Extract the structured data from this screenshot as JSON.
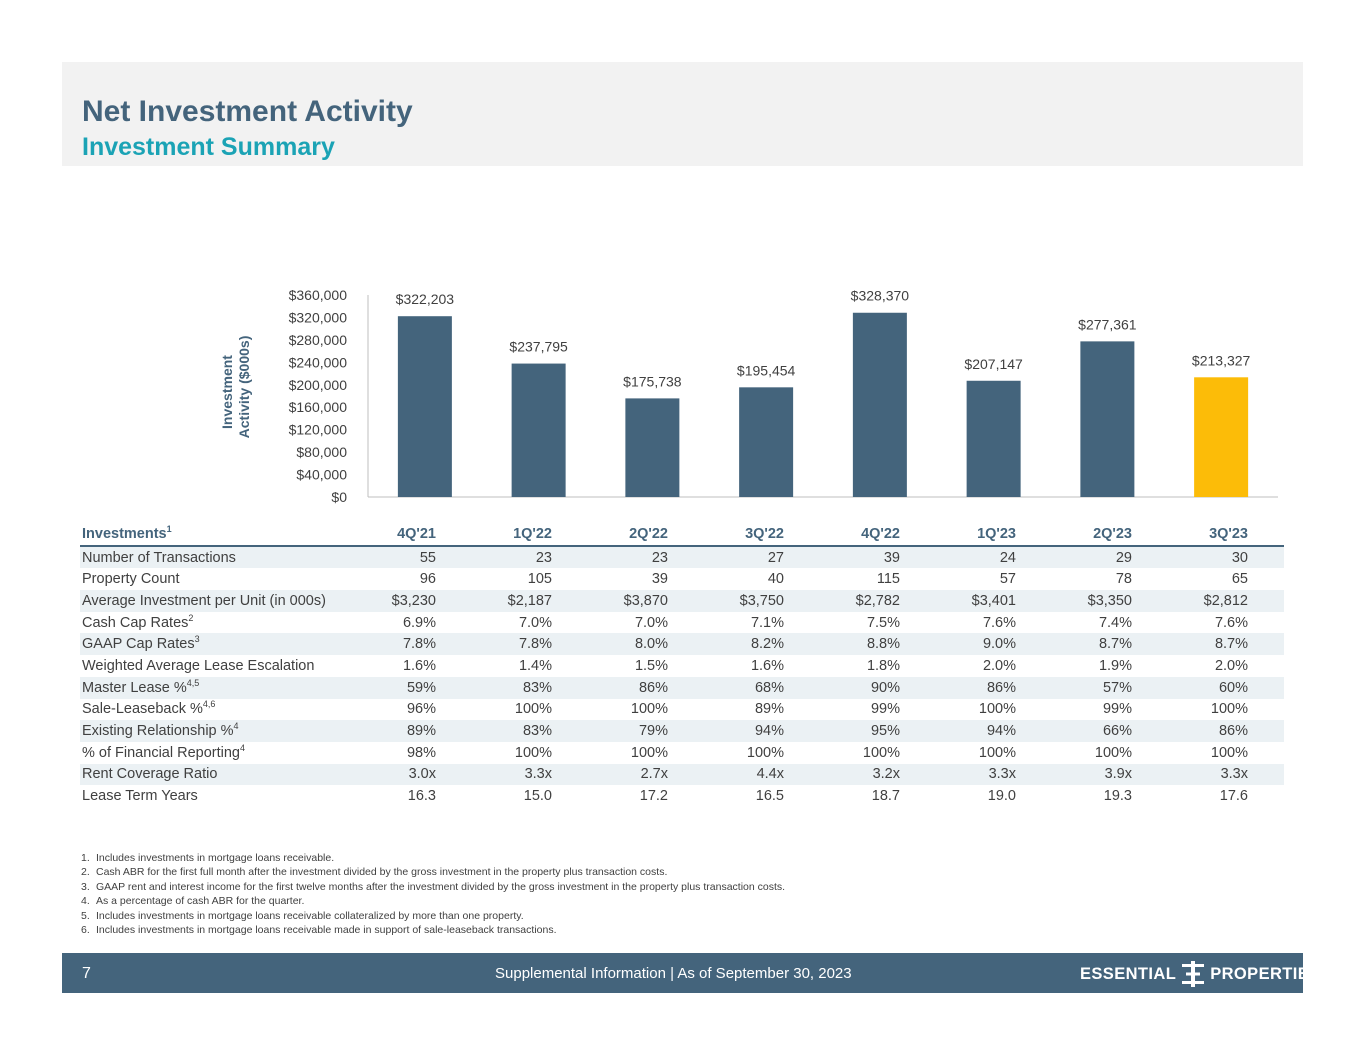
{
  "header": {
    "title": "Net Investment Activity",
    "subtitle": "Investment Summary"
  },
  "chart_data": {
    "type": "bar",
    "title": "",
    "ylabel_line1": "Investment",
    "ylabel_line2": "Activity ($000s)",
    "xlabel": "",
    "ylim": [
      0,
      360000
    ],
    "yticks": [
      0,
      40000,
      80000,
      120000,
      160000,
      200000,
      240000,
      280000,
      320000,
      360000
    ],
    "ytick_labels": [
      "$0",
      "$40,000",
      "$80,000",
      "$120,000",
      "$160,000",
      "$200,000",
      "$240,000",
      "$280,000",
      "$320,000",
      "$360,000"
    ],
    "categories": [
      "4Q'21",
      "1Q'22",
      "2Q'22",
      "3Q'22",
      "4Q'22",
      "1Q'23",
      "2Q'23",
      "3Q'23"
    ],
    "values": [
      322203,
      237795,
      175738,
      195454,
      328370,
      207147,
      277361,
      213327
    ],
    "data_labels": [
      "$322,203",
      "$237,795",
      "$175,738",
      "$195,454",
      "$328,370",
      "$207,147",
      "$277,361",
      "$213,327"
    ],
    "colors": [
      "#44647c",
      "#44647c",
      "#44647c",
      "#44647c",
      "#44647c",
      "#44647c",
      "#44647c",
      "#fcbc08"
    ]
  },
  "table": {
    "header_label": "Investments",
    "header_sup": "1",
    "columns": [
      "4Q'21",
      "1Q'22",
      "2Q'22",
      "3Q'22",
      "4Q'22",
      "1Q'23",
      "2Q'23",
      "3Q'23"
    ],
    "rows": [
      {
        "label": "Number of Transactions",
        "sup": "",
        "values": [
          "55",
          "23",
          "23",
          "27",
          "39",
          "24",
          "29",
          "30"
        ]
      },
      {
        "label": "Property Count",
        "sup": "",
        "values": [
          "96",
          "105",
          "39",
          "40",
          "115",
          "57",
          "78",
          "65"
        ]
      },
      {
        "label": "Average Investment per Unit (in 000s)",
        "sup": "",
        "values": [
          "$3,230",
          "$2,187",
          "$3,870",
          "$3,750",
          "$2,782",
          "$3,401",
          "$3,350",
          "$2,812"
        ]
      },
      {
        "label": "Cash Cap Rates",
        "sup": "2",
        "values": [
          "6.9%",
          "7.0%",
          "7.0%",
          "7.1%",
          "7.5%",
          "7.6%",
          "7.4%",
          "7.6%"
        ]
      },
      {
        "label": "GAAP Cap Rates",
        "sup": "3",
        "values": [
          "7.8%",
          "7.8%",
          "8.0%",
          "8.2%",
          "8.8%",
          "9.0%",
          "8.7%",
          "8.7%"
        ]
      },
      {
        "label": "Weighted Average Lease Escalation",
        "sup": "",
        "values": [
          "1.6%",
          "1.4%",
          "1.5%",
          "1.6%",
          "1.8%",
          "2.0%",
          "1.9%",
          "2.0%"
        ]
      },
      {
        "label": "Master Lease %",
        "sup": "4,5",
        "values": [
          "59%",
          "83%",
          "86%",
          "68%",
          "90%",
          "86%",
          "57%",
          "60%"
        ]
      },
      {
        "label": "Sale-Leaseback %",
        "sup": "4,6",
        "values": [
          "96%",
          "100%",
          "100%",
          "89%",
          "99%",
          "100%",
          "99%",
          "100%"
        ]
      },
      {
        "label": "Existing Relationship %",
        "sup": "4",
        "values": [
          "89%",
          "83%",
          "79%",
          "94%",
          "95%",
          "94%",
          "66%",
          "86%"
        ]
      },
      {
        "label": "% of Financial Reporting",
        "sup": "4",
        "values": [
          "98%",
          "100%",
          "100%",
          "100%",
          "100%",
          "100%",
          "100%",
          "100%"
        ]
      },
      {
        "label": "Rent Coverage Ratio",
        "sup": "",
        "values": [
          "3.0x",
          "3.3x",
          "2.7x",
          "4.4x",
          "3.2x",
          "3.3x",
          "3.9x",
          "3.3x"
        ]
      },
      {
        "label": "Lease Term Years",
        "sup": "",
        "values": [
          "16.3",
          "15.0",
          "17.2",
          "16.5",
          "18.7",
          "19.0",
          "19.3",
          "17.6"
        ]
      }
    ]
  },
  "footnotes": [
    {
      "num": "1.",
      "text": "Includes investments in mortgage loans receivable."
    },
    {
      "num": "2.",
      "text": "Cash ABR for the first full month after the investment divided by the gross investment in the property plus transaction costs."
    },
    {
      "num": "3.",
      "text": "GAAP rent and interest income for the first twelve months after the investment divided by the gross investment in the property plus transaction costs."
    },
    {
      "num": "4.",
      "text": "As a percentage of cash ABR for the quarter."
    },
    {
      "num": "5.",
      "text": "Includes investments in mortgage loans receivable collateralized by more than one property."
    },
    {
      "num": "6.",
      "text": "Includes investments in mortgage loans receivable made in support of sale-leaseback transactions."
    }
  ],
  "footer": {
    "page_number": "7",
    "center_text": "Supplemental Information |  As of September 30, 2023",
    "logo_left": "ESSENTIAL",
    "logo_right": "PROPERTIES"
  }
}
